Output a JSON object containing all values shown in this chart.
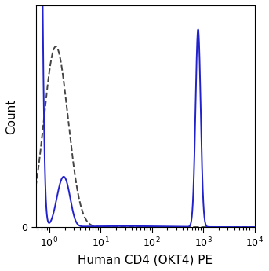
{
  "title": "",
  "xlabel": "Human CD4 (OKT4) PE",
  "ylabel": "Count",
  "xlim": [
    0.55,
    10000
  ],
  "ylim_min": 0,
  "ylim_max": 1.08,
  "solid_color": "#2222cc",
  "dashed_color": "#444444",
  "background_color": "#ffffff",
  "figsize": [
    3.43,
    3.45
  ],
  "dpi": 100
}
